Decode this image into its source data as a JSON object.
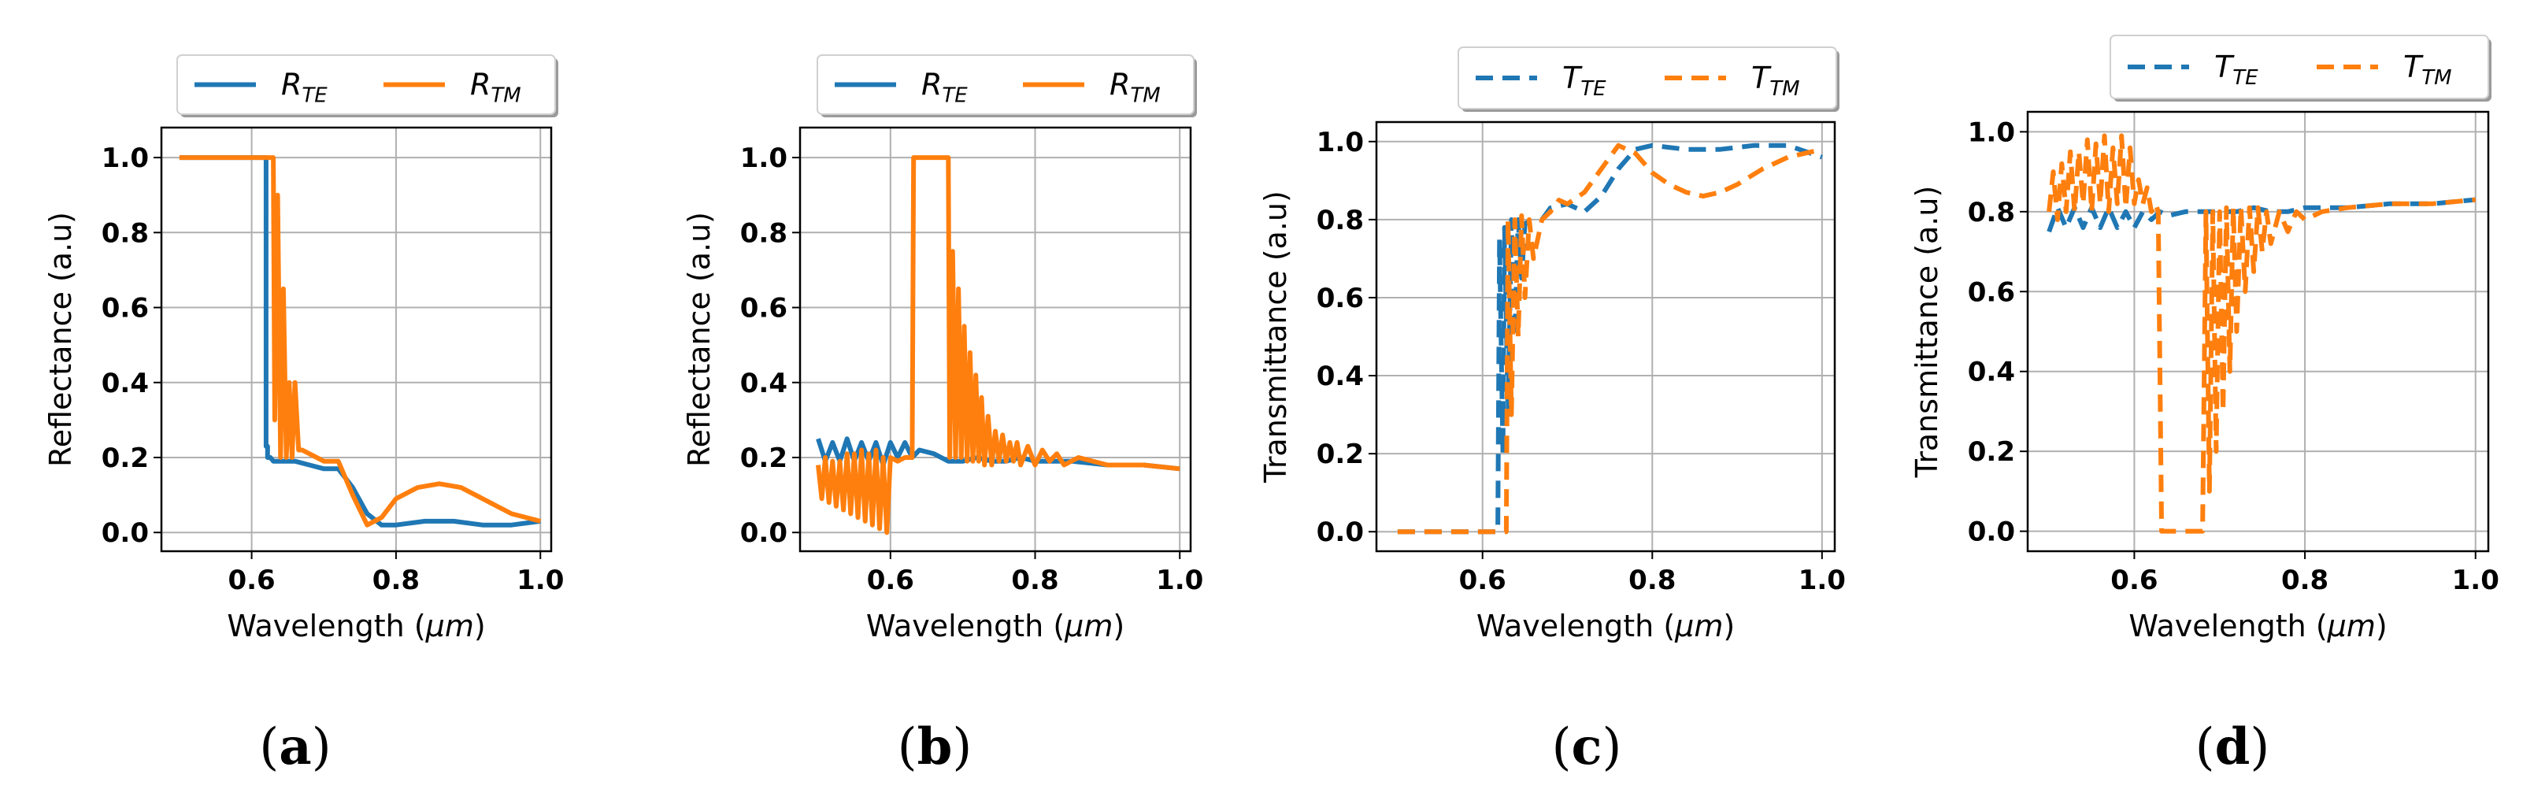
{
  "chart_data": [
    {
      "type": "line",
      "panel_label": "a",
      "xlabel": "Wavelength",
      "xunit": "μm",
      "ylabel": "Reflectance (a.u)",
      "xlim": [
        0.475,
        1.015
      ],
      "ylim": [
        -0.05,
        1.08
      ],
      "xticks": [
        "0.6",
        "0.8",
        "1.0"
      ],
      "yticks": [
        "0.0",
        "0.2",
        "0.4",
        "0.6",
        "0.8",
        "1.0"
      ],
      "grid": true,
      "legend_position": "top-center",
      "series": [
        {
          "name": "R",
          "sub": "TE",
          "color": "#1f77b4",
          "dash": false,
          "x": [
            0.5,
            0.62,
            0.62,
            0.622,
            0.622,
            0.626,
            0.63,
            0.64,
            0.66,
            0.68,
            0.7,
            0.72,
            0.74,
            0.76,
            0.78,
            0.8,
            0.84,
            0.88,
            0.92,
            0.96,
            1.0
          ],
          "y": [
            1.0,
            1.0,
            0.23,
            0.23,
            0.2,
            0.2,
            0.19,
            0.19,
            0.19,
            0.18,
            0.17,
            0.17,
            0.12,
            0.05,
            0.02,
            0.02,
            0.03,
            0.03,
            0.02,
            0.02,
            0.03
          ]
        },
        {
          "name": "R",
          "sub": "TM",
          "color": "#ff7f0e",
          "dash": false,
          "x": [
            0.5,
            0.63,
            0.632,
            0.636,
            0.64,
            0.644,
            0.648,
            0.652,
            0.656,
            0.66,
            0.665,
            0.67,
            0.68,
            0.7,
            0.72,
            0.74,
            0.76,
            0.78,
            0.8,
            0.83,
            0.86,
            0.89,
            0.92,
            0.96,
            1.0
          ],
          "y": [
            1.0,
            1.0,
            0.3,
            0.9,
            0.2,
            0.65,
            0.2,
            0.4,
            0.2,
            0.4,
            0.22,
            0.22,
            0.21,
            0.19,
            0.19,
            0.1,
            0.02,
            0.04,
            0.09,
            0.12,
            0.13,
            0.12,
            0.09,
            0.05,
            0.03
          ]
        }
      ]
    },
    {
      "type": "line",
      "panel_label": "b",
      "xlabel": "Wavelength",
      "xunit": "μm",
      "ylabel": "Reflectance (a.u)",
      "xlim": [
        0.475,
        1.015
      ],
      "ylim": [
        -0.05,
        1.08
      ],
      "xticks": [
        "0.6",
        "0.8",
        "1.0"
      ],
      "yticks": [
        "0.0",
        "0.2",
        "0.4",
        "0.6",
        "0.8",
        "1.0"
      ],
      "grid": true,
      "legend_position": "top-center",
      "series": [
        {
          "name": "R",
          "sub": "TE",
          "color": "#1f77b4",
          "dash": false,
          "x": [
            0.5,
            0.51,
            0.52,
            0.53,
            0.54,
            0.55,
            0.56,
            0.57,
            0.58,
            0.59,
            0.6,
            0.61,
            0.62,
            0.63,
            0.64,
            0.66,
            0.68,
            0.7,
            0.72,
            0.74,
            0.76,
            0.78,
            0.8,
            0.85,
            0.9,
            0.95,
            1.0
          ],
          "y": [
            0.25,
            0.19,
            0.24,
            0.19,
            0.25,
            0.19,
            0.24,
            0.19,
            0.24,
            0.18,
            0.24,
            0.2,
            0.24,
            0.2,
            0.22,
            0.21,
            0.19,
            0.19,
            0.2,
            0.19,
            0.19,
            0.2,
            0.19,
            0.19,
            0.18,
            0.18,
            0.17
          ]
        },
        {
          "name": "R",
          "sub": "TM",
          "color": "#ff7f0e",
          "dash": false,
          "x": [
            0.5,
            0.505,
            0.51,
            0.515,
            0.52,
            0.525,
            0.53,
            0.535,
            0.54,
            0.545,
            0.55,
            0.555,
            0.56,
            0.565,
            0.57,
            0.575,
            0.58,
            0.585,
            0.59,
            0.595,
            0.6,
            0.61,
            0.62,
            0.63,
            0.632,
            0.68,
            0.682,
            0.686,
            0.69,
            0.694,
            0.698,
            0.702,
            0.706,
            0.71,
            0.714,
            0.718,
            0.722,
            0.726,
            0.73,
            0.735,
            0.74,
            0.745,
            0.75,
            0.755,
            0.76,
            0.765,
            0.77,
            0.775,
            0.78,
            0.79,
            0.8,
            0.81,
            0.82,
            0.83,
            0.84,
            0.86,
            0.9,
            0.95,
            1.0
          ],
          "y": [
            0.18,
            0.09,
            0.2,
            0.08,
            0.19,
            0.07,
            0.19,
            0.06,
            0.21,
            0.05,
            0.21,
            0.04,
            0.22,
            0.03,
            0.21,
            0.02,
            0.22,
            0.01,
            0.2,
            0.0,
            0.2,
            0.19,
            0.2,
            0.2,
            1.0,
            1.0,
            0.2,
            0.75,
            0.2,
            0.65,
            0.2,
            0.55,
            0.19,
            0.48,
            0.19,
            0.42,
            0.19,
            0.36,
            0.18,
            0.31,
            0.18,
            0.27,
            0.19,
            0.26,
            0.19,
            0.24,
            0.19,
            0.24,
            0.18,
            0.23,
            0.18,
            0.22,
            0.19,
            0.21,
            0.18,
            0.2,
            0.18,
            0.18,
            0.17
          ]
        }
      ]
    },
    {
      "type": "line",
      "panel_label": "c",
      "xlabel": "Wavelength",
      "xunit": "μm",
      "ylabel": "Transmittance (a.u)",
      "xlim": [
        0.475,
        1.015
      ],
      "ylim": [
        -0.05,
        1.05
      ],
      "xticks": [
        "0.6",
        "0.8",
        "1.0"
      ],
      "yticks": [
        "0.0",
        "0.2",
        "0.4",
        "0.6",
        "0.8",
        "1.0"
      ],
      "grid": true,
      "legend_position": "top-center",
      "series": [
        {
          "name": "T",
          "sub": "TE",
          "color": "#1f77b4",
          "dash": true,
          "x": [
            0.5,
            0.618,
            0.62,
            0.624,
            0.626,
            0.63,
            0.634,
            0.638,
            0.642,
            0.646,
            0.65,
            0.66,
            0.67,
            0.68,
            0.7,
            0.72,
            0.74,
            0.76,
            0.78,
            0.8,
            0.84,
            0.88,
            0.92,
            0.96,
            1.0
          ],
          "y": [
            0.0,
            0.0,
            0.75,
            0.2,
            0.78,
            0.3,
            0.8,
            0.5,
            0.8,
            0.65,
            0.79,
            0.8,
            0.8,
            0.83,
            0.84,
            0.82,
            0.86,
            0.93,
            0.98,
            0.99,
            0.98,
            0.98,
            0.99,
            0.99,
            0.96
          ]
        },
        {
          "name": "T",
          "sub": "TM",
          "color": "#ff7f0e",
          "dash": true,
          "x": [
            0.5,
            0.628,
            0.63,
            0.634,
            0.638,
            0.642,
            0.646,
            0.65,
            0.655,
            0.66,
            0.67,
            0.68,
            0.69,
            0.7,
            0.72,
            0.74,
            0.76,
            0.78,
            0.8,
            0.82,
            0.84,
            0.86,
            0.88,
            0.9,
            0.93,
            0.96,
            1.0
          ],
          "y": [
            0.0,
            0.0,
            0.8,
            0.3,
            0.8,
            0.5,
            0.81,
            0.6,
            0.8,
            0.7,
            0.8,
            0.82,
            0.85,
            0.84,
            0.87,
            0.93,
            0.99,
            0.97,
            0.92,
            0.89,
            0.87,
            0.86,
            0.87,
            0.89,
            0.93,
            0.96,
            0.98
          ]
        }
      ]
    },
    {
      "type": "line",
      "panel_label": "d",
      "xlabel": "Wavelength",
      "xunit": "μm",
      "ylabel": "Transmittance (a.u)",
      "xlim": [
        0.475,
        1.015
      ],
      "ylim": [
        -0.05,
        1.05
      ],
      "xticks": [
        "0.6",
        "0.8",
        "1.0"
      ],
      "yticks": [
        "0.0",
        "0.2",
        "0.4",
        "0.6",
        "0.8",
        "1.0"
      ],
      "grid": true,
      "legend_position": "top-center",
      "series": [
        {
          "name": "T",
          "sub": "TE",
          "color": "#1f77b4",
          "dash": true,
          "x": [
            0.5,
            0.51,
            0.52,
            0.53,
            0.54,
            0.55,
            0.56,
            0.57,
            0.58,
            0.59,
            0.6,
            0.61,
            0.62,
            0.63,
            0.64,
            0.66,
            0.68,
            0.7,
            0.72,
            0.74,
            0.76,
            0.78,
            0.8,
            0.85,
            0.9,
            0.95,
            1.0
          ],
          "y": [
            0.75,
            0.81,
            0.76,
            0.81,
            0.76,
            0.81,
            0.76,
            0.81,
            0.76,
            0.8,
            0.76,
            0.8,
            0.78,
            0.8,
            0.79,
            0.8,
            0.8,
            0.8,
            0.8,
            0.81,
            0.8,
            0.8,
            0.81,
            0.81,
            0.82,
            0.82,
            0.83
          ]
        },
        {
          "name": "T",
          "sub": "TM",
          "color": "#ff7f0e",
          "dash": true,
          "x": [
            0.5,
            0.505,
            0.51,
            0.515,
            0.52,
            0.525,
            0.53,
            0.535,
            0.54,
            0.545,
            0.55,
            0.555,
            0.56,
            0.565,
            0.57,
            0.575,
            0.58,
            0.585,
            0.59,
            0.595,
            0.6,
            0.605,
            0.61,
            0.615,
            0.62,
            0.625,
            0.628,
            0.632,
            0.68,
            0.684,
            0.688,
            0.692,
            0.696,
            0.7,
            0.704,
            0.708,
            0.712,
            0.716,
            0.72,
            0.725,
            0.73,
            0.735,
            0.74,
            0.745,
            0.75,
            0.755,
            0.76,
            0.77,
            0.78,
            0.79,
            0.8,
            0.82,
            0.85,
            0.9,
            0.95,
            1.0
          ],
          "y": [
            0.8,
            0.9,
            0.78,
            0.92,
            0.8,
            0.95,
            0.8,
            0.95,
            0.82,
            0.98,
            0.8,
            0.97,
            0.82,
            0.99,
            0.8,
            0.96,
            0.82,
            0.99,
            0.81,
            0.96,
            0.82,
            0.88,
            0.82,
            0.86,
            0.8,
            0.82,
            0.8,
            0.0,
            0.0,
            0.8,
            0.1,
            0.8,
            0.2,
            0.8,
            0.3,
            0.81,
            0.4,
            0.81,
            0.5,
            0.81,
            0.6,
            0.81,
            0.65,
            0.81,
            0.7,
            0.8,
            0.72,
            0.8,
            0.75,
            0.8,
            0.78,
            0.8,
            0.81,
            0.82,
            0.82,
            0.83
          ]
        }
      ]
    }
  ]
}
